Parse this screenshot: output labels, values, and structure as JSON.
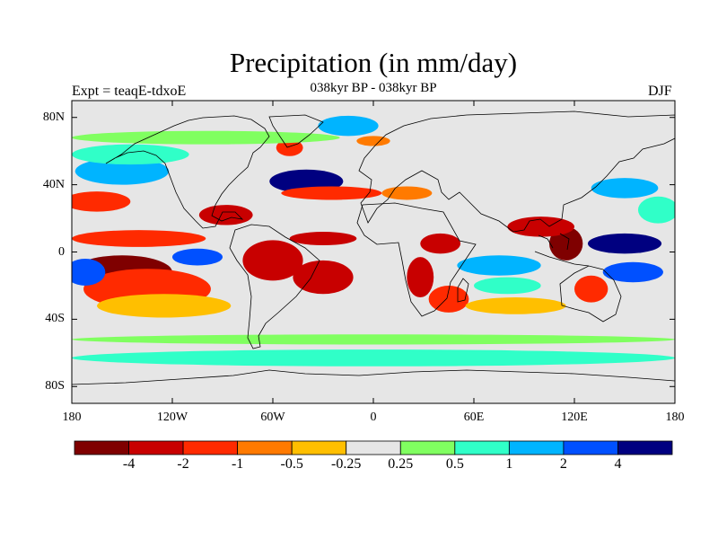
{
  "title": "Precipitation (in mm/day)",
  "subtitle": "038kyr BP - 038kyr BP",
  "left_label": "Expt = teaqE-tdxoE",
  "right_label": "DJF",
  "map": {
    "projection": "cylindrical equidistant",
    "lon_range": [
      -180,
      180
    ],
    "lat_range": [
      -90,
      90
    ],
    "lat_ticks": [
      {
        "value": 80,
        "label": "80N"
      },
      {
        "value": 40,
        "label": "40N"
      },
      {
        "value": 0,
        "label": "0"
      },
      {
        "value": -40,
        "label": "40S"
      },
      {
        "value": -80,
        "label": "80S"
      }
    ],
    "lon_ticks": [
      {
        "value": -180,
        "label": "180"
      },
      {
        "value": -120,
        "label": "120W"
      },
      {
        "value": -60,
        "label": "60W"
      },
      {
        "value": 0,
        "label": "0"
      },
      {
        "value": 60,
        "label": "60E"
      },
      {
        "value": 120,
        "label": "120E"
      },
      {
        "value": 180,
        "label": "180"
      }
    ],
    "colorbar": {
      "colors": [
        "#7f0000",
        "#c80000",
        "#ff2a00",
        "#ff7a00",
        "#ffbf00",
        "#e6e6e6",
        "#80ff60",
        "#30ffc8",
        "#00b4ff",
        "#0050ff",
        "#000080"
      ],
      "labels": [
        "-4",
        "-2",
        "-1",
        "-0.5",
        "-0.25",
        "0.25",
        "0.5",
        "1",
        "2",
        "4"
      ]
    },
    "anomaly_regions": [
      {
        "name": "tropical-central-pacific-dry",
        "lon": -150,
        "lat": -12,
        "rx": 30,
        "ry": 10,
        "level": 0
      },
      {
        "name": "south-pacific-dry-band",
        "lon": -135,
        "lat": -22,
        "rx": 38,
        "ry": 12,
        "level": 2
      },
      {
        "name": "south-pacific-orange-band",
        "lon": -125,
        "lat": -32,
        "rx": 40,
        "ry": 7,
        "level": 4
      },
      {
        "name": "west-pacific-wet",
        "lon": -172,
        "lat": -12,
        "rx": 12,
        "ry": 8,
        "level": 9
      },
      {
        "name": "pacific-itcz-dry",
        "lon": -140,
        "lat": 8,
        "rx": 40,
        "ry": 5,
        "level": 2
      },
      {
        "name": "north-pacific-dry",
        "lon": -165,
        "lat": 30,
        "rx": 20,
        "ry": 6,
        "level": 2
      },
      {
        "name": "north-pacific-wet",
        "lon": -150,
        "lat": 48,
        "rx": 28,
        "ry": 8,
        "level": 8
      },
      {
        "name": "north-pacific-cyan",
        "lon": -145,
        "lat": 58,
        "rx": 35,
        "ry": 6,
        "level": 7
      },
      {
        "name": "east-pacific-wet",
        "lon": -105,
        "lat": -3,
        "rx": 15,
        "ry": 5,
        "level": 9
      },
      {
        "name": "gulf-of-mexico-dry",
        "lon": -88,
        "lat": 22,
        "rx": 16,
        "ry": 6,
        "level": 1
      },
      {
        "name": "amazon-dry",
        "lon": -60,
        "lat": -5,
        "rx": 18,
        "ry": 12,
        "level": 1
      },
      {
        "name": "south-atlantic-dry",
        "lon": -30,
        "lat": -15,
        "rx": 18,
        "ry": 10,
        "level": 1
      },
      {
        "name": "atlantic-itcz-dry",
        "lon": -30,
        "lat": 8,
        "rx": 20,
        "ry": 4,
        "level": 1
      },
      {
        "name": "north-atlantic-wet",
        "lon": -40,
        "lat": 42,
        "rx": 22,
        "ry": 7,
        "level": 10
      },
      {
        "name": "north-atlantic-dry",
        "lon": -25,
        "lat": 35,
        "rx": 30,
        "ry": 4,
        "level": 2
      },
      {
        "name": "labrador-dry",
        "lon": -50,
        "lat": 62,
        "rx": 8,
        "ry": 5,
        "level": 2
      },
      {
        "name": "nordic-seas-wet",
        "lon": -15,
        "lat": 75,
        "rx": 18,
        "ry": 6,
        "level": 8
      },
      {
        "name": "barents-dry",
        "lon": 0,
        "lat": 66,
        "rx": 10,
        "ry": 3,
        "level": 3
      },
      {
        "name": "mediterranean-dry",
        "lon": 20,
        "lat": 35,
        "rx": 15,
        "ry": 4,
        "level": 3
      },
      {
        "name": "southern-africa-dry",
        "lon": 28,
        "lat": -15,
        "rx": 8,
        "ry": 12,
        "level": 1
      },
      {
        "name": "equatorial-africa-dry",
        "lon": 40,
        "lat": 5,
        "rx": 12,
        "ry": 6,
        "level": 1
      },
      {
        "name": "south-indian-dry",
        "lon": 45,
        "lat": -28,
        "rx": 12,
        "ry": 8,
        "level": 2
      },
      {
        "name": "indian-ocean-wet",
        "lon": 75,
        "lat": -8,
        "rx": 25,
        "ry": 6,
        "level": 8
      },
      {
        "name": "east-indian-cyan",
        "lon": 80,
        "lat": -20,
        "rx": 20,
        "ry": 5,
        "level": 7
      },
      {
        "name": "indian-ocean-south-orange",
        "lon": 85,
        "lat": -32,
        "rx": 30,
        "ry": 5,
        "level": 4
      },
      {
        "name": "maritime-continent-dry",
        "lon": 115,
        "lat": 5,
        "rx": 10,
        "ry": 10,
        "level": 0
      },
      {
        "name": "north-of-equator-dry",
        "lon": 100,
        "lat": 15,
        "rx": 20,
        "ry": 6,
        "level": 1
      },
      {
        "name": "west-pacific-warm-pool-wet",
        "lon": 150,
        "lat": 5,
        "rx": 22,
        "ry": 6,
        "level": 10
      },
      {
        "name": "west-pacific-south-wet",
        "lon": 155,
        "lat": -12,
        "rx": 18,
        "ry": 6,
        "level": 9
      },
      {
        "name": "australia-dry",
        "lon": 130,
        "lat": -22,
        "rx": 10,
        "ry": 8,
        "level": 2
      },
      {
        "name": "japan-wet",
        "lon": 150,
        "lat": 38,
        "rx": 20,
        "ry": 6,
        "level": 8
      },
      {
        "name": "north-west-pacific-cyan",
        "lon": 170,
        "lat": 25,
        "rx": 12,
        "ry": 8,
        "level": 7
      },
      {
        "name": "southern-ocean-green",
        "lon": 0,
        "lat": -52,
        "rx": 180,
        "ry": 3,
        "level": 6
      },
      {
        "name": "southern-ocean-cyan",
        "lon": 0,
        "lat": -63,
        "rx": 180,
        "ry": 5,
        "level": 7
      },
      {
        "name": "arctic-green",
        "lon": -100,
        "lat": 68,
        "rx": 80,
        "ry": 4,
        "level": 6
      }
    ]
  }
}
